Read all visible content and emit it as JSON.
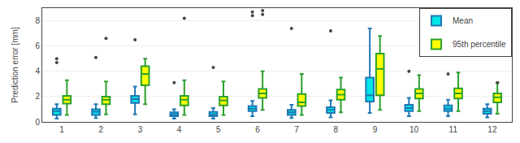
{
  "chart_data": {
    "type": "box",
    "ylabel": "Prediction error [mm]",
    "x": [
      1,
      2,
      3,
      4,
      5,
      6,
      7,
      8,
      9,
      10,
      11,
      12
    ],
    "xlim": [
      0.5,
      12.5
    ],
    "xticks": [
      1,
      2,
      3,
      4,
      5,
      6,
      7,
      8,
      9,
      10,
      11,
      12
    ],
    "ylim": [
      0,
      9
    ],
    "yticks": [
      0,
      2,
      4,
      6,
      8
    ],
    "grid": true,
    "legend": "upper right",
    "series": [
      {
        "name": "Mean",
        "color": "#00E5E5",
        "q1": [
          0.55,
          0.55,
          1.5,
          0.45,
          0.45,
          0.85,
          0.55,
          0.7,
          1.6,
          0.85,
          0.85,
          0.65
        ],
        "median": [
          0.85,
          0.8,
          1.8,
          0.6,
          0.6,
          1.05,
          0.75,
          0.95,
          2.1,
          1.1,
          1.05,
          0.85
        ],
        "q3": [
          1.05,
          1.0,
          2.05,
          0.75,
          0.78,
          1.25,
          0.95,
          1.15,
          3.5,
          1.35,
          1.3,
          1.05
        ],
        "whislo": [
          0.25,
          0.3,
          0.6,
          0.25,
          0.25,
          0.45,
          0.3,
          0.35,
          0.7,
          0.45,
          0.45,
          0.35
        ],
        "whishi": [
          1.4,
          1.4,
          2.8,
          1.0,
          1.1,
          1.65,
          1.35,
          1.7,
          7.4,
          1.9,
          1.75,
          1.4
        ],
        "fliers": [
          [
            5.0,
            4.7
          ],
          [
            5.1
          ],
          [
            6.5
          ],
          [
            3.1
          ],
          [
            4.3
          ],
          [
            8.7,
            8.4
          ],
          [
            7.4
          ],
          [
            7.2
          ],
          [],
          [
            4.0
          ],
          [
            3.8
          ],
          []
        ]
      },
      {
        "name": "95th percentile",
        "color": "#FFFF00",
        "q1": [
          1.45,
          1.4,
          2.9,
          1.3,
          1.3,
          1.9,
          1.25,
          1.75,
          2.1,
          1.85,
          1.85,
          1.55
        ],
        "median": [
          1.75,
          1.75,
          3.8,
          1.75,
          1.7,
          2.25,
          1.55,
          2.15,
          4.2,
          2.25,
          2.25,
          1.95
        ],
        "q3": [
          2.05,
          2.0,
          4.4,
          2.05,
          2.0,
          2.6,
          2.2,
          2.55,
          5.4,
          2.6,
          2.65,
          2.25
        ],
        "whislo": [
          0.55,
          0.6,
          1.4,
          0.55,
          0.55,
          0.95,
          0.55,
          0.75,
          0.95,
          0.85,
          0.85,
          0.65
        ],
        "whishi": [
          3.3,
          3.2,
          5.0,
          3.3,
          3.2,
          4.0,
          3.8,
          3.5,
          6.8,
          3.7,
          3.9,
          3.1
        ],
        "fliers": [
          [],
          [
            6.6
          ],
          [],
          [
            8.2
          ],
          [],
          [
            8.8,
            8.5
          ],
          [],
          [],
          [],
          [],
          [],
          [
            3.1
          ]
        ]
      }
    ]
  }
}
